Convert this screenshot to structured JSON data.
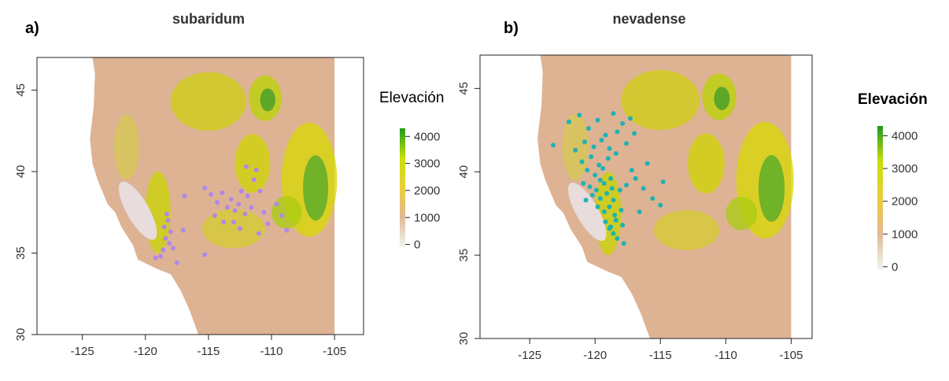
{
  "chart_data": [
    {
      "type": "scatter",
      "panel_label": "a)",
      "title": "subaridum",
      "color": "#b088e6",
      "x": [
        -118.3,
        -118.2,
        -118.5,
        -118.0,
        -118.4,
        -118.1,
        -117.8,
        -118.6,
        -118.8,
        -117.5,
        -119.2,
        -115.3,
        -117.0,
        -116.9,
        -115.3,
        -114.8,
        -114.3,
        -113.9,
        -113.5,
        -113.2,
        -112.9,
        -112.6,
        -112.4,
        -112.1,
        -111.9,
        -111.6,
        -111.4,
        -111.2,
        -110.9,
        -110.6,
        -110.3,
        -111.0,
        -112.5,
        -113.8,
        -114.5,
        -109.6,
        -109.2,
        -108.8,
        -112.0,
        -113.0
      ],
      "y": [
        37.4,
        37.0,
        36.6,
        36.3,
        35.9,
        35.6,
        35.3,
        35.2,
        34.8,
        34.4,
        34.7,
        34.9,
        36.4,
        38.5,
        39.0,
        38.6,
        38.1,
        38.7,
        37.8,
        38.3,
        37.6,
        38.0,
        38.8,
        37.4,
        38.5,
        37.8,
        39.5,
        40.1,
        38.8,
        37.5,
        36.8,
        36.2,
        36.5,
        36.9,
        37.3,
        38.0,
        37.3,
        36.4,
        40.3,
        36.9
      ],
      "xlim": [
        -128.6,
        -102.7
      ],
      "ylim": [
        30,
        47
      ],
      "xticks": [
        -125,
        -120,
        -115,
        -110,
        -105
      ],
      "yticks": [
        30,
        35,
        40,
        45
      ],
      "colorbar": {
        "title": "Elevación",
        "lim": [
          -100,
          4300
        ],
        "ticks": [
          0,
          1000,
          2000,
          3000,
          4000
        ],
        "colors": [
          "#eef7ee",
          "#e3b896",
          "#e8cf3a",
          "#c8e00a",
          "#1e9a1e"
        ]
      }
    },
    {
      "type": "scatter",
      "panel_label": "b)",
      "title": "nevadense",
      "color": "#20b2b2",
      "x": [
        -123.2,
        -122.0,
        -121.2,
        -120.5,
        -119.8,
        -119.2,
        -118.6,
        -117.9,
        -117.3,
        -121.5,
        -120.8,
        -120.1,
        -119.5,
        -118.9,
        -118.3,
        -117.6,
        -121.0,
        -120.3,
        -119.7,
        -119.0,
        -118.4,
        -117.0,
        -120.6,
        -120.0,
        -119.4,
        -118.8,
        -120.9,
        -120.4,
        -119.9,
        -119.3,
        -118.7,
        -120.2,
        -119.6,
        -119.1,
        -118.6,
        -118.1,
        -119.8,
        -119.3,
        -118.9,
        -118.5,
        -118.0,
        -119.2,
        -118.8,
        -118.4,
        -117.9,
        -118.6,
        -118.3,
        -117.8,
        -116.9,
        -116.3,
        -115.6,
        -114.8,
        -116.0,
        -117.2,
        -117.6,
        -116.6,
        -115.0,
        -118.9,
        -119.6,
        -120.7
      ],
      "y": [
        41.6,
        43.0,
        43.4,
        42.6,
        43.1,
        42.2,
        43.5,
        42.9,
        43.2,
        41.3,
        41.8,
        41.5,
        41.9,
        41.4,
        42.4,
        41.7,
        40.6,
        40.9,
        40.4,
        40.8,
        41.1,
        42.3,
        40.1,
        39.8,
        40.2,
        39.6,
        39.3,
        39.1,
        38.9,
        39.3,
        39.0,
        38.6,
        38.4,
        38.7,
        38.3,
        38.9,
        37.9,
        37.6,
        37.9,
        37.4,
        37.7,
        37.0,
        36.7,
        37.1,
        36.8,
        36.3,
        36.0,
        35.7,
        39.6,
        39.0,
        38.4,
        39.4,
        40.5,
        40.1,
        39.2,
        37.6,
        38.0,
        36.6,
        39.5,
        38.3
      ],
      "xlim": [
        -128.8,
        -103.4
      ],
      "ylim": [
        30,
        47
      ],
      "xticks": [
        -125,
        -120,
        -115,
        -110,
        -105
      ],
      "yticks": [
        30,
        35,
        40,
        45
      ],
      "colorbar": {
        "title": "Elevación",
        "lim": [
          -100,
          4300
        ],
        "ticks": [
          0,
          1000,
          2000,
          3000,
          4000
        ],
        "colors": [
          "#eef7ee",
          "#e3b896",
          "#e8cf3a",
          "#c8e00a",
          "#1e9a1e"
        ]
      }
    }
  ]
}
